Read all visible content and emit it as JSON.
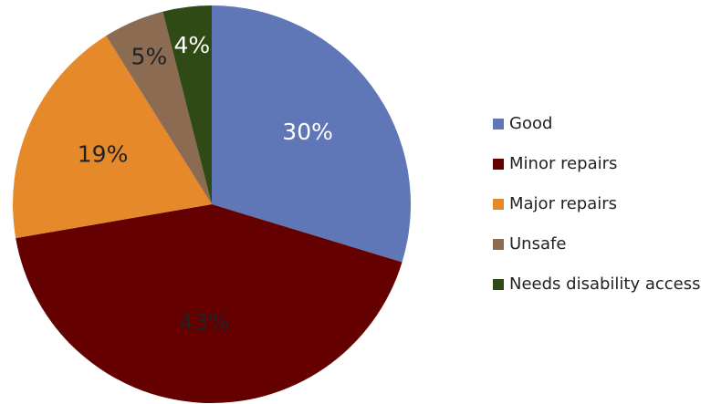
{
  "chart_data": {
    "type": "pie",
    "categories": [
      "Good",
      "Minor repairs",
      "Major repairs",
      "Unsafe",
      "Needs disability access"
    ],
    "values": [
      30,
      43,
      19,
      5,
      4
    ],
    "value_labels": [
      "30%",
      "43%",
      "19%",
      "5%",
      "4%"
    ],
    "colors": [
      "#5f76b7",
      "#640000",
      "#e6892a",
      "#8b6b52",
      "#2f4a14"
    ],
    "label_colors": [
      "#ffffff",
      "#222222",
      "#222222",
      "#222222",
      "#ffffff"
    ],
    "legend": "right"
  }
}
